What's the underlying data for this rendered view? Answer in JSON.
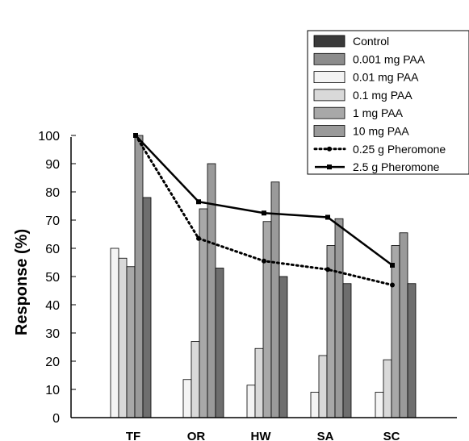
{
  "chart_data": {
    "type": "bar",
    "title": "",
    "xlabel": "",
    "ylabel": "Response (%)",
    "ylim": [
      0,
      100
    ],
    "yticks": [
      0,
      10,
      20,
      30,
      40,
      50,
      60,
      70,
      80,
      90,
      100
    ],
    "grid": false,
    "legend_position": "top-right",
    "categories": [
      "TF",
      "OR",
      "HW",
      "SA",
      "SC"
    ],
    "series": [
      {
        "name": "Control",
        "kind": "bar",
        "color": "#3a3a3a",
        "values": [
          0,
          0,
          0,
          0,
          0
        ]
      },
      {
        "name": "0.001 mg PAA",
        "kind": "bar",
        "color": "#8c8c8c",
        "values": [
          0,
          0,
          0,
          0,
          0
        ]
      },
      {
        "name": "0.01 mg PAA",
        "kind": "bar",
        "color": "#f4f4f4",
        "values": [
          60,
          13.5,
          11.5,
          9,
          9
        ]
      },
      {
        "name": "0.1 mg PAA",
        "kind": "bar",
        "color": "#d9d9d9",
        "values": [
          56.5,
          27,
          24.5,
          22,
          20.5
        ]
      },
      {
        "name": "1 mg PAA",
        "kind": "bar",
        "color": "#a8a8a8",
        "values": [
          53.5,
          74,
          69.5,
          61,
          61
        ]
      },
      {
        "name": "10 mg PAA",
        "kind": "bar",
        "color": "#9a9a9a",
        "values": [
          100,
          90,
          83.5,
          70.5,
          65.5
        ]
      },
      {
        "name": "",
        "kind": "bar",
        "color": "#6e6e6e",
        "values": [
          78,
          53,
          50,
          47.5,
          47.5
        ]
      },
      {
        "name": "0.25  g Pheromone",
        "kind": "line",
        "style": "dotted",
        "color": "#000000",
        "values": [
          100,
          63.5,
          55.5,
          52.5,
          47
        ]
      },
      {
        "name": "2.5  g Pheromone",
        "kind": "line",
        "style": "solid",
        "color": "#000000",
        "values": [
          100,
          76.5,
          72.5,
          71,
          54
        ]
      }
    ]
  }
}
